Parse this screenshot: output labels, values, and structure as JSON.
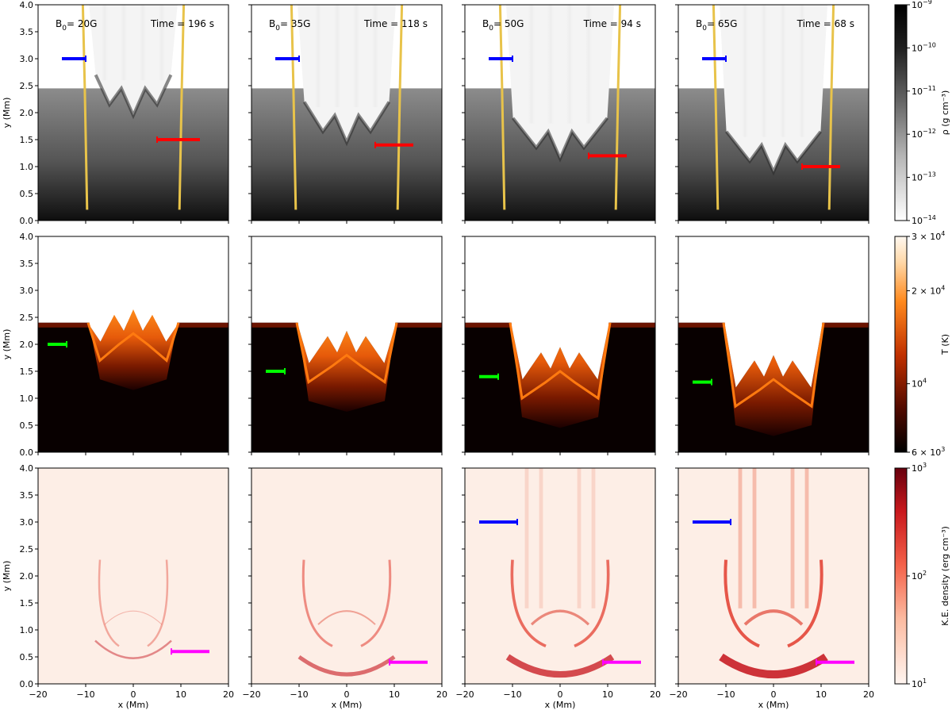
{
  "chart_data": {
    "type": "heatmap",
    "title": "",
    "xlabel": "x (Mm)",
    "ylabel": "y (Mm)",
    "xlim": [
      -20,
      20
    ],
    "ylim": [
      0,
      4.0
    ],
    "x_ticks": [
      -20,
      -10,
      0,
      10,
      20
    ],
    "y_ticks": [
      0.0,
      0.5,
      1.0,
      1.5,
      2.0,
      2.5,
      3.0,
      3.5,
      4.0
    ],
    "panels": [
      {
        "B0": "20G",
        "time": "Time = 196 s",
        "b0_text": "B",
        "b0_sub": "0",
        "b0_val": "= 20G"
      },
      {
        "B0": "35G",
        "time": "Time = 118 s",
        "b0_text": "B",
        "b0_sub": "0",
        "b0_val": "= 35G"
      },
      {
        "B0": "50G",
        "time": "Time = 94 s",
        "b0_text": "B",
        "b0_sub": "0",
        "b0_val": "= 50G"
      },
      {
        "B0": "65G",
        "time": "Time = 68 s",
        "b0_text": "B",
        "b0_sub": "0",
        "b0_val": "= 65G"
      }
    ],
    "rows": [
      {
        "quantity": "density",
        "colormap": "grey",
        "colorbar_label": "ρ (g cm⁻³)",
        "colorbar_scale": "log",
        "colorbar_ticks": [
          {
            "base": "10",
            "exp": "−9"
          },
          {
            "base": "10",
            "exp": "−10"
          },
          {
            "base": "10",
            "exp": "−11"
          },
          {
            "base": "10",
            "exp": "−12"
          },
          {
            "base": "10",
            "exp": "−13"
          },
          {
            "base": "10",
            "exp": "−14"
          }
        ],
        "front_height_Mm": [
          2.1,
          1.6,
          1.3,
          1.05
        ],
        "field_line_x_Mm": [
          10,
          11,
          12,
          12
        ],
        "arrows": [
          [
            {
              "color": "#0000ff",
              "x": [
                -15,
                -10
              ],
              "y": 3.0
            },
            {
              "color": "#ff0000",
              "x": [
                5,
                14
              ],
              "y": 1.5
            }
          ],
          [
            {
              "color": "#0000ff",
              "x": [
                -15,
                -10
              ],
              "y": 3.0
            },
            {
              "color": "#ff0000",
              "x": [
                6,
                14
              ],
              "y": 1.4
            }
          ],
          [
            {
              "color": "#0000ff",
              "x": [
                -15,
                -10
              ],
              "y": 3.0
            },
            {
              "color": "#ff0000",
              "x": [
                6,
                14
              ],
              "y": 1.2
            }
          ],
          [
            {
              "color": "#0000ff",
              "x": [
                -15,
                -10
              ],
              "y": 3.0
            },
            {
              "color": "#ff0000",
              "x": [
                6,
                14
              ],
              "y": 1.0
            }
          ]
        ]
      },
      {
        "quantity": "temperature",
        "colormap": "gist_heat",
        "colorbar_label": "T (K)",
        "colorbar_scale": "log",
        "colorbar_ticks": [
          {
            "pre": "3 × ",
            "base": "10",
            "exp": "4"
          },
          {
            "pre": "2 × ",
            "base": "10",
            "exp": "4"
          },
          {
            "pre": "",
            "base": "10",
            "exp": "4"
          },
          {
            "pre": "6 × ",
            "base": "10",
            "exp": "3"
          }
        ],
        "front_height_Mm": [
          1.7,
          1.3,
          1.0,
          0.85
        ],
        "arrows": [
          [
            {
              "color": "#00ff00",
              "x": [
                -18,
                -14
              ],
              "y": 2.0
            }
          ],
          [
            {
              "color": "#00ff00",
              "x": [
                -17,
                -13
              ],
              "y": 1.5
            }
          ],
          [
            {
              "color": "#00ff00",
              "x": [
                -17,
                -13
              ],
              "y": 1.4
            }
          ],
          [
            {
              "color": "#00ff00",
              "x": [
                -17,
                -13
              ],
              "y": 1.3
            }
          ]
        ]
      },
      {
        "quantity": "kinetic energy density",
        "colormap": "reds",
        "colorbar_label": "K.E. density (erg cm⁻³)",
        "colorbar_scale": "log",
        "colorbar_ticks": [
          {
            "base": "10",
            "exp": "3"
          },
          {
            "base": "10",
            "exp": "2"
          },
          {
            "base": "10",
            "exp": "1"
          }
        ],
        "arrows": [
          [
            {
              "color": "#ff00ff",
              "x": [
                8,
                16
              ],
              "y": 0.6
            }
          ],
          [
            {
              "color": "#ff00ff",
              "x": [
                9,
                17
              ],
              "y": 0.4
            }
          ],
          [
            {
              "color": "#0000ff",
              "x": [
                -17,
                -9
              ],
              "y": 3.0
            },
            {
              "color": "#ff00ff",
              "x": [
                9,
                17
              ],
              "y": 0.4
            }
          ],
          [
            {
              "color": "#0000ff",
              "x": [
                -17,
                -9
              ],
              "y": 3.0
            },
            {
              "color": "#ff00ff",
              "x": [
                9,
                17
              ],
              "y": 0.4
            }
          ]
        ]
      }
    ]
  }
}
